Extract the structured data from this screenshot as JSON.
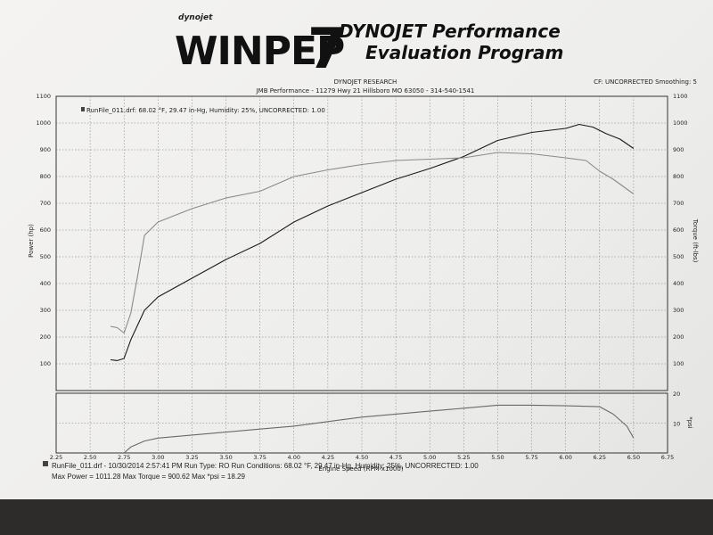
{
  "logo": {
    "small": "dynojet",
    "big": "WINPEP",
    "number": "7",
    "tagline1": "DYNOJET Performance",
    "tagline2": "Evaluation Program"
  },
  "header": {
    "company": "DYNOJET RESEARCH",
    "shop": "JMB Performance - 11279 Hwy 21 Hillsboro MO 63050 - 314-540-1541",
    "cf": "CF: UNCORRECTED  Smoothing: 5"
  },
  "legend": {
    "text": "RunFile_011.drf: 68.02 °F, 29.47 in-Hg, Humidity: 25%, UNCORRECTED: 1.00"
  },
  "footer": {
    "line1": "RunFile_011.drf - 10/30/2014 2:57:41 PM  Run Type: RO  Run Conditions: 68.02 °F, 29.47 in-Hg,  Humidity: 25%, UNCORRECTED: 1.00",
    "line2": "Max Power = 1011.28  Max Torque = 900.62  Max *psi = 18.29"
  },
  "chart_data": [
    {
      "type": "line",
      "xlabel": "Engine Speed (RPM x1000)",
      "ylabel": "Power (hp)",
      "y2label": "Torque (ft-lbs)",
      "xlim": [
        2.25,
        6.75
      ],
      "ylim": [
        0,
        1100
      ],
      "y2lim": [
        0,
        1100
      ],
      "grid": true,
      "x_ticks": [
        "2.25",
        "2.50",
        "2.75",
        "3.00",
        "3.25",
        "3.50",
        "3.75",
        "4.00",
        "4.25",
        "4.50",
        "4.75",
        "5.00",
        "5.25",
        "5.50",
        "5.75",
        "6.00",
        "6.25",
        "6.50",
        "6.75"
      ],
      "y_ticks": [
        "100",
        "200",
        "300",
        "400",
        "500",
        "600",
        "700",
        "800",
        "900",
        "1000",
        "1100"
      ],
      "series": [
        {
          "key": "power",
          "color": "#1a1a1a",
          "x": [
            2.65,
            2.7,
            2.75,
            2.8,
            2.9,
            3.0,
            3.25,
            3.5,
            3.75,
            4.0,
            4.25,
            4.5,
            4.75,
            5.0,
            5.25,
            5.5,
            5.75,
            6.0,
            6.1,
            6.2,
            6.3,
            6.4,
            6.5
          ],
          "y": [
            115,
            112,
            120,
            190,
            300,
            350,
            420,
            490,
            550,
            630,
            690,
            740,
            790,
            830,
            875,
            935,
            965,
            980,
            995,
            985,
            960,
            940,
            905
          ]
        },
        {
          "key": "torque",
          "color": "#8a8a8a",
          "x": [
            2.65,
            2.7,
            2.75,
            2.8,
            2.85,
            2.9,
            3.0,
            3.25,
            3.5,
            3.75,
            4.0,
            4.25,
            4.5,
            4.75,
            5.0,
            5.25,
            5.5,
            5.75,
            6.0,
            6.15,
            6.25,
            6.35,
            6.5
          ],
          "y": [
            240,
            235,
            215,
            290,
            430,
            580,
            630,
            680,
            720,
            745,
            800,
            825,
            845,
            860,
            865,
            870,
            890,
            885,
            870,
            860,
            820,
            790,
            735
          ]
        }
      ]
    },
    {
      "type": "line",
      "xlabel": "Engine Speed (RPM x1000)",
      "y2label": "*psi",
      "xlim": [
        2.25,
        6.75
      ],
      "y2lim": [
        0,
        20
      ],
      "grid": true,
      "y2_ticks": [
        "10",
        "20"
      ],
      "series": [
        {
          "key": "boost",
          "color": "#6a6a6a",
          "x": [
            2.75,
            2.8,
            2.9,
            3.0,
            3.25,
            3.5,
            3.75,
            4.0,
            4.25,
            4.5,
            4.75,
            5.0,
            5.25,
            5.5,
            5.75,
            6.0,
            6.25,
            6.35,
            6.45,
            6.5
          ],
          "y": [
            0,
            2,
            4,
            5,
            6,
            7,
            8,
            9,
            10.5,
            12,
            13,
            14,
            15,
            16,
            16,
            15.8,
            15.5,
            13,
            9,
            5
          ]
        }
      ]
    }
  ]
}
